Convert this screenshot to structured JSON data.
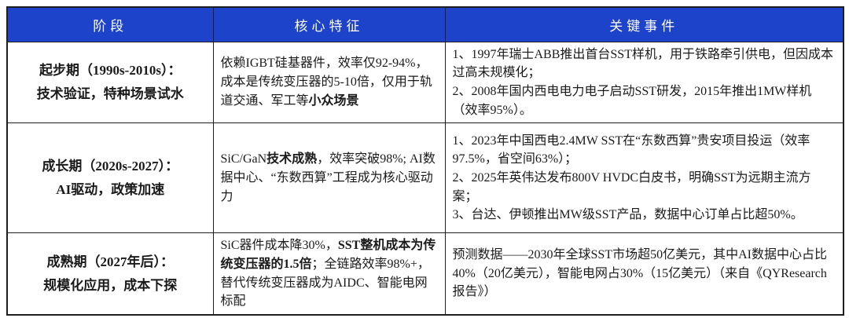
{
  "colors": {
    "header_bg": "#1e43cb",
    "header_text": "#ffffff",
    "border": "#1f1f1f",
    "body_text": "#1a1a1a",
    "page_bg": "#ffffff"
  },
  "header": {
    "columns": [
      "阶段",
      "核心特征",
      "关键事件"
    ]
  },
  "rows": [
    {
      "stage": [
        [
          {
            "t": "起步期（1990s-2010s）：",
            "b": true
          }
        ],
        [
          {
            "t": "技术验证，特种场景试水",
            "b": true
          }
        ]
      ],
      "features": [
        [
          {
            "t": "依赖IGBT硅基器件，效率仅92-94%，成本是传统变压器的5-10倍，仅用于轨道交通、军工等",
            "b": false
          },
          {
            "t": "小众场景",
            "b": true
          }
        ]
      ],
      "events": [
        [
          {
            "t": "1、1997年瑞士ABB推出首台SST样机，用于铁路牵引供电，但因成本过高未规模化；",
            "b": false
          }
        ],
        [
          {
            "t": "2、2008年国内西电电力电子启动SST研发，2015年推出1MW样机（效率95%）。",
            "b": false
          }
        ]
      ]
    },
    {
      "stage": [
        [
          {
            "t": "成长期（2020s-2027）：",
            "b": true
          }
        ],
        [
          {
            "t": "AI驱动，政策加速",
            "b": true
          }
        ]
      ],
      "features": [
        [
          {
            "t": "SiC/GaN",
            "b": false
          },
          {
            "t": "技术成熟",
            "b": true
          },
          {
            "t": "，效率突破98%; AI数据中心、“东数西算”工程成为核心驱动力",
            "b": false
          }
        ]
      ],
      "events": [
        [
          {
            "t": "1、2023年中国西电2.4MW SST在“东数西算”贵安项目投运（效率97.5%，省空间63%）；",
            "b": false
          }
        ],
        [
          {
            "t": "2、2025年英伟达发布800V HVDC白皮书，明确SST为远期主流方案；",
            "b": false
          }
        ],
        [
          {
            "t": "3、台达、伊顿推出MW级SST产品，数据中心订单占比超50%。",
            "b": false
          }
        ]
      ]
    },
    {
      "stage": [
        [
          {
            "t": "成熟期（2027年后）：",
            "b": true
          }
        ],
        [
          {
            "t": "规模化应用，成本下探",
            "b": true
          }
        ]
      ],
      "features": [
        [
          {
            "t": "SiC器件成本降30%，",
            "b": false
          },
          {
            "t": "SST整机成本为传统变压器的1.5倍",
            "b": true
          },
          {
            "t": "；全链路效率98%+，替代传统变压器成为AIDC、智能电网标配",
            "b": false
          }
        ]
      ],
      "events": [
        [
          {
            "t": "预测数据——2030年全球SST市场超50亿美元，其中AI数据中心占比40%（20亿美元），智能电网占30%（15亿美元）（来自《QYResearch报告》）",
            "b": false
          }
        ]
      ]
    }
  ]
}
